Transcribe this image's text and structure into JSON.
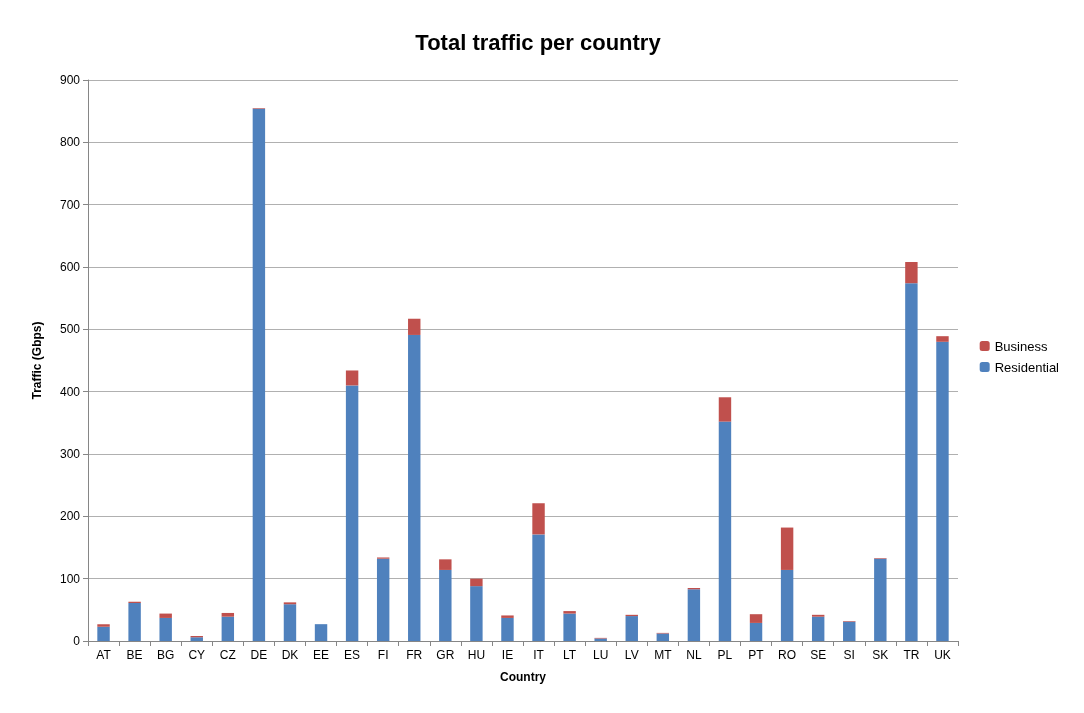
{
  "chart_data": {
    "type": "bar",
    "title": "Total traffic per country",
    "xlabel": "Country",
    "ylabel": "Traffic (Gbps)",
    "categories": [
      "AT",
      "BE",
      "BG",
      "CY",
      "CZ",
      "DE",
      "DK",
      "EE",
      "ES",
      "FI",
      "FR",
      "GR",
      "HU",
      "IE",
      "IT",
      "LT",
      "LU",
      "LV",
      "MT",
      "NL",
      "PL",
      "PT",
      "RO",
      "SE",
      "SI",
      "SK",
      "TR",
      "UK"
    ],
    "stacked": true,
    "series": [
      {
        "name": "Residential",
        "color": "#4f81bd",
        "values": [
          23,
          61,
          37,
          6,
          39,
          854,
          59,
          27,
          410,
          132,
          491,
          114,
          88,
          37,
          171,
          44,
          4,
          40,
          12,
          83,
          352,
          29,
          114,
          39,
          31,
          132,
          574,
          480
        ]
      },
      {
        "name": "Business",
        "color": "#c0504d",
        "values": [
          4,
          2,
          7,
          2,
          6,
          1,
          3,
          null,
          24,
          2,
          26,
          17,
          12,
          4,
          50,
          4,
          1,
          2,
          1,
          2,
          39,
          14,
          68,
          3,
          1,
          1,
          34,
          9
        ]
      }
    ],
    "ylim": [
      0,
      900
    ],
    "yticks": [
      0,
      100,
      200,
      300,
      400,
      500,
      600,
      700,
      800,
      900
    ],
    "grid": "y",
    "legend": "right"
  }
}
